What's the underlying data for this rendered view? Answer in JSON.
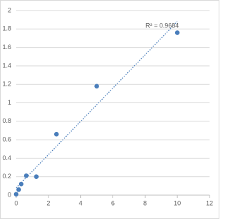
{
  "chart_data": {
    "type": "scatter",
    "x": [
      0,
      0.156,
      0.3125,
      0.625,
      1.25,
      2.5,
      5,
      10
    ],
    "series": [
      {
        "color": "#4a7ebb",
        "values": [
          0.01,
          0.06,
          0.12,
          0.21,
          0.2,
          0.66,
          1.18,
          1.76
        ]
      }
    ],
    "trendline": true,
    "annotation": "R² = 0.9684",
    "xlim": [
      0,
      12
    ],
    "xticks": [
      0,
      2,
      4,
      6,
      8,
      10,
      12
    ],
    "ylim": [
      0,
      2
    ],
    "yticks": [
      0,
      0.2,
      0.4,
      0.6,
      0.8,
      1,
      1.2,
      1.4,
      1.6,
      1.8,
      2
    ],
    "grid": true
  }
}
